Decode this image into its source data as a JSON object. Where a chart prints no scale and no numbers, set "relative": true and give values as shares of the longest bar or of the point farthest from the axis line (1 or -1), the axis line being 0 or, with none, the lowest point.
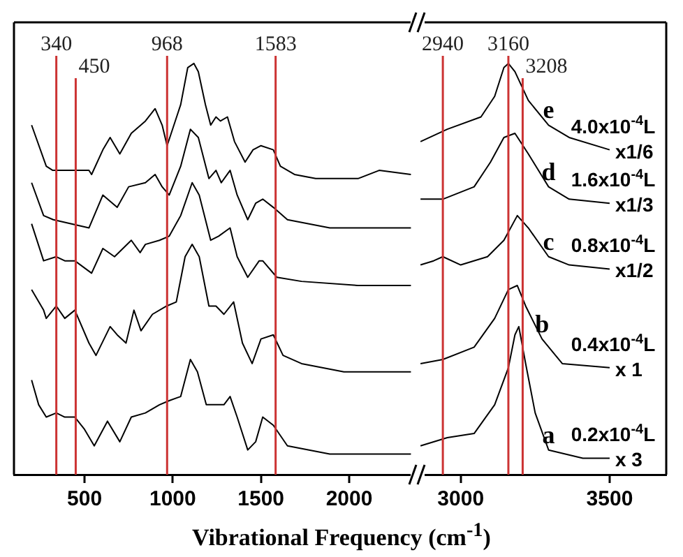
{
  "chart_data": [
    {
      "type": "line",
      "relative": true,
      "xlabel": "Vibrational Frequency (cm$^{-1}$)",
      "xlim": [
        100,
        2380
      ],
      "xticks": [
        500,
        1000,
        1500,
        2000
      ],
      "x": [
        200,
        283,
        320,
        525,
        540,
        604,
        645,
        700,
        765,
        845,
        900,
        940,
        968,
        1045,
        1085,
        1120,
        1145,
        1185,
        1215,
        1245,
        1270,
        1310,
        1350,
        1410,
        1455,
        1500,
        1570,
        1610,
        1690,
        1810,
        2050,
        2170,
        2350
      ],
      "series": [
        {
          "color": "#000000",
          "values": [
            0.85,
            0.75,
            0.74,
            0.74,
            0.73,
            0.79,
            0.82,
            0.78,
            0.83,
            0.86,
            0.89,
            0.85,
            0.8,
            0.9,
            0.99,
            1.0,
            0.98,
            0.9,
            0.85,
            0.87,
            0.86,
            0.87,
            0.81,
            0.76,
            0.79,
            0.8,
            0.79,
            0.75,
            0.73,
            0.72,
            0.72,
            0.74,
            0.73
          ]
        },
        {
          "color": "#000000",
          "x": [
            200,
            268,
            323,
            525,
            604,
            685,
            750,
            845,
            900,
            940,
            980,
            1045,
            1100,
            1145,
            1205,
            1245,
            1275,
            1325,
            1365,
            1425,
            1470,
            1510,
            1570,
            1650,
            1890,
            2130,
            2350
          ],
          "values": [
            0.71,
            0.63,
            0.62,
            0.6,
            0.68,
            0.65,
            0.7,
            0.71,
            0.73,
            0.7,
            0.68,
            0.75,
            0.84,
            0.82,
            0.72,
            0.74,
            0.71,
            0.74,
            0.68,
            0.62,
            0.66,
            0.67,
            0.65,
            0.62,
            0.6,
            0.6,
            0.6
          ]
        },
        {
          "color": "#000000",
          "x": [
            200,
            268,
            340,
            388,
            445,
            540,
            604,
            670,
            765,
            815,
            845,
            925,
            980,
            1045,
            1110,
            1150,
            1215,
            1260,
            1325,
            1365,
            1425,
            1490,
            1510,
            1590,
            1730,
            2050,
            2350
          ],
          "values": [
            0.61,
            0.52,
            0.53,
            0.52,
            0.52,
            0.49,
            0.55,
            0.53,
            0.57,
            0.54,
            0.56,
            0.57,
            0.58,
            0.63,
            0.71,
            0.68,
            0.57,
            0.58,
            0.6,
            0.53,
            0.48,
            0.52,
            0.52,
            0.48,
            0.47,
            0.46,
            0.46
          ]
        },
        {
          "color": "#000000",
          "x": [
            200,
            268,
            283,
            340,
            388,
            445,
            525,
            565,
            645,
            685,
            735,
            780,
            820,
            885,
            965,
            1020,
            1070,
            1110,
            1150,
            1205,
            1245,
            1290,
            1345,
            1395,
            1450,
            1500,
            1570,
            1625,
            1730,
            1970,
            2350
          ],
          "values": [
            0.45,
            0.4,
            0.38,
            0.41,
            0.38,
            0.4,
            0.32,
            0.29,
            0.36,
            0.34,
            0.32,
            0.4,
            0.35,
            0.39,
            0.41,
            0.42,
            0.53,
            0.56,
            0.53,
            0.41,
            0.41,
            0.39,
            0.42,
            0.32,
            0.27,
            0.33,
            0.34,
            0.29,
            0.27,
            0.25,
            0.25
          ]
        },
        {
          "color": "#000000",
          "x": [
            200,
            240,
            283,
            340,
            388,
            445,
            500,
            555,
            630,
            700,
            765,
            845,
            925,
            980,
            1045,
            1100,
            1140,
            1190,
            1290,
            1325,
            1365,
            1425,
            1470,
            1510,
            1570,
            1650,
            1890,
            2350
          ],
          "values": [
            0.23,
            0.17,
            0.14,
            0.15,
            0.14,
            0.14,
            0.11,
            0.07,
            0.13,
            0.08,
            0.14,
            0.15,
            0.17,
            0.18,
            0.19,
            0.28,
            0.25,
            0.17,
            0.17,
            0.19,
            0.14,
            0.06,
            0.08,
            0.14,
            0.12,
            0.07,
            0.05,
            0.05
          ]
        }
      ],
      "ref_lines": [
        {
          "axis": "x",
          "value": 340,
          "label": "340",
          "color": "#cc3333"
        },
        {
          "axis": "x",
          "value": 450,
          "label": "450",
          "color": "#cc3333"
        },
        {
          "axis": "x",
          "value": 968,
          "label": "968",
          "color": "#cc3333"
        },
        {
          "axis": "x",
          "value": 1583,
          "label": "1583",
          "color": "#cc3333"
        }
      ]
    },
    {
      "type": "line",
      "relative": true,
      "xlim": [
        2860,
        3690
      ],
      "xticks": [
        3000,
        3500
      ],
      "series": [
        {
          "name": "e",
          "color": "#000000",
          "x": [
            2865,
            2955,
            3068,
            3114,
            3145,
            3160,
            3182,
            3227,
            3295,
            3364,
            3500
          ],
          "values": [
            0.81,
            0.84,
            0.87,
            0.92,
            0.99,
            1.0,
            0.98,
            0.91,
            0.85,
            0.82,
            0.79
          ]
        },
        {
          "name": "d",
          "color": "#000000",
          "x": [
            2865,
            2940,
            3045,
            3100,
            3145,
            3182,
            3227,
            3295,
            3364,
            3500
          ],
          "values": [
            0.67,
            0.67,
            0.7,
            0.76,
            0.82,
            0.83,
            0.78,
            0.7,
            0.67,
            0.66
          ]
        },
        {
          "name": "c",
          "color": "#000000",
          "x": [
            2865,
            2909,
            2940,
            3000,
            3090,
            3145,
            3190,
            3227,
            3295,
            3364,
            3500
          ],
          "values": [
            0.51,
            0.52,
            0.53,
            0.51,
            0.53,
            0.57,
            0.63,
            0.6,
            0.53,
            0.51,
            0.5
          ]
        },
        {
          "name": "b",
          "color": "#000000",
          "x": [
            2865,
            2940,
            3045,
            3114,
            3160,
            3190,
            3218,
            3273,
            3341,
            3500
          ],
          "values": [
            0.27,
            0.28,
            0.31,
            0.38,
            0.45,
            0.46,
            0.41,
            0.33,
            0.27,
            0.26
          ]
        },
        {
          "name": "a",
          "color": "#000000",
          "x": [
            2865,
            2955,
            3045,
            3114,
            3160,
            3182,
            3195,
            3218,
            3250,
            3295,
            3410,
            3500
          ],
          "values": [
            0.07,
            0.09,
            0.1,
            0.17,
            0.26,
            0.34,
            0.36,
            0.27,
            0.15,
            0.06,
            0.04,
            0.04
          ]
        }
      ],
      "annotations": [
        "4.0x10$^{-4}$L",
        "x1/6",
        "1.6x10$^{-4}$L",
        "x1/3",
        "0.8x10$^{-4}$L",
        "x1/2",
        "0.4x10$^{-4}$L",
        "x 1",
        "0.2x10$^{-4}$L",
        "x 3"
      ],
      "ref_lines": [
        {
          "axis": "x",
          "value": 2940,
          "label": "2940",
          "color": "#cc3333"
        },
        {
          "axis": "x",
          "value": 3160,
          "label": "3160",
          "color": "#cc3333"
        },
        {
          "axis": "x",
          "value": 3208,
          "label": "3208",
          "color": "#cc3333"
        }
      ]
    }
  ]
}
